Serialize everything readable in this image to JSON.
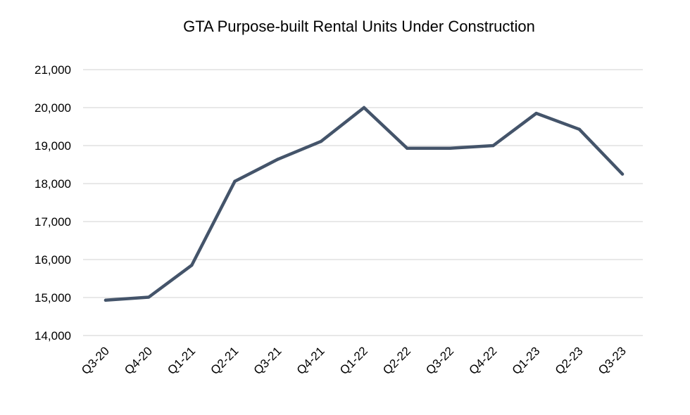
{
  "chart_data": {
    "type": "line",
    "title": "GTA Purpose-built Rental Units Under Construction",
    "xlabel": "",
    "ylabel": "",
    "categories": [
      "Q3-20",
      "Q4-20",
      "Q1-21",
      "Q2-21",
      "Q3-21",
      "Q4-21",
      "Q1-22",
      "Q2-22",
      "Q3-22",
      "Q4-22",
      "Q1-23",
      "Q2-23",
      "Q3-23"
    ],
    "series": [
      {
        "values": [
          14930,
          15010,
          15850,
          18060,
          18640,
          19110,
          20000,
          18930,
          18930,
          19000,
          19850,
          19430,
          18250
        ],
        "color": "#44546a"
      }
    ],
    "ylim": [
      14000,
      21000
    ],
    "yticks": [
      14000,
      15000,
      16000,
      17000,
      18000,
      19000,
      20000,
      21000
    ],
    "ytick_labels": [
      "14,000",
      "15,000",
      "16,000",
      "17,000",
      "18,000",
      "19,000",
      "20,000",
      "21,000"
    ],
    "grid": true,
    "legend": "none"
  }
}
